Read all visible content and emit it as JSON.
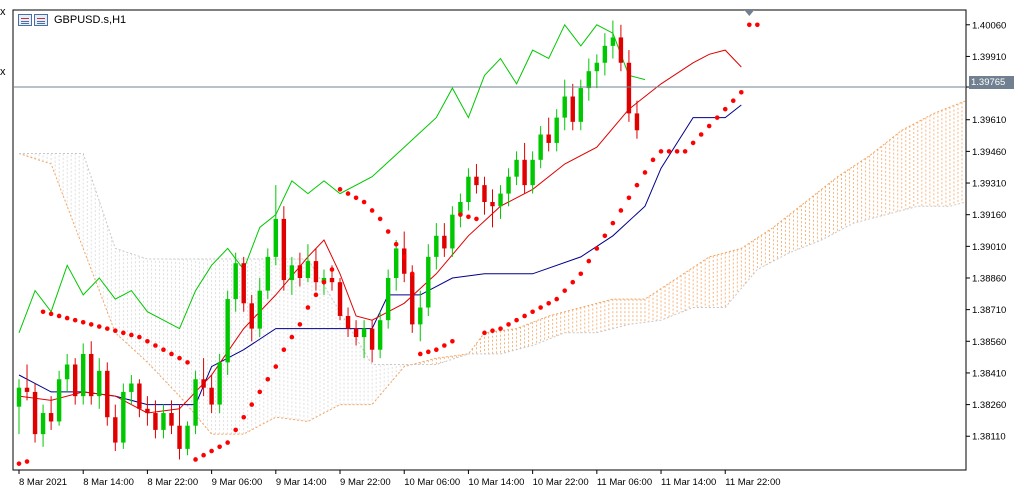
{
  "window": {
    "title": "GBPUSD.s,H1",
    "corner_marks": [
      "x",
      "x"
    ]
  },
  "colors": {
    "bull": "#00c800",
    "bear": "#e00000",
    "tenkan": "#e00000",
    "kijun": "#00008b",
    "chikou": "#00c800",
    "cloud_a": "#f4a460",
    "cloud_b": "#d8d8d8",
    "sar": "#ff0000",
    "price_line": "#708090"
  },
  "icons": [
    "chart-window-icon",
    "current-price-triangle-icon"
  ],
  "chart_data": {
    "type": "candlestick",
    "symbol": "GBPUSD.s",
    "timeframe": "H1",
    "indicators": [
      "Ichimoku Kinko Hyo",
      "Parabolic SAR"
    ],
    "y_range": [
      1.3795,
      1.4013
    ],
    "x_range": [
      0,
      118
    ],
    "y_ticks": [
      "1.40060",
      "1.39910",
      "1.39765",
      "1.39610",
      "1.39460",
      "1.39310",
      "1.39160",
      "1.39010",
      "1.38860",
      "1.38710",
      "1.38560",
      "1.38410",
      "1.38260",
      "1.38110"
    ],
    "x_ticks": [
      {
        "label": "8 Mar 2021",
        "bar": 0
      },
      {
        "label": "8 Mar 14:00",
        "bar": 8
      },
      {
        "label": "8 Mar 22:00",
        "bar": 16
      },
      {
        "label": "9 Mar 06:00",
        "bar": 24
      },
      {
        "label": "9 Mar 14:00",
        "bar": 32
      },
      {
        "label": "9 Mar 22:00",
        "bar": 40
      },
      {
        "label": "10 Mar 06:00",
        "bar": 48
      },
      {
        "label": "10 Mar 14:00",
        "bar": 56
      },
      {
        "label": "10 Mar 22:00",
        "bar": 64
      },
      {
        "label": "11 Mar 06:00",
        "bar": 72
      },
      {
        "label": "11 Mar 14:00",
        "bar": 80
      },
      {
        "label": "11 Mar 22:00",
        "bar": 88
      }
    ],
    "current_price": 1.39765,
    "current_price_label": "1.39765",
    "candles": [
      [
        1.3825,
        1.3838,
        1.3812,
        1.3834
      ],
      [
        1.3834,
        1.3845,
        1.3828,
        1.3832
      ],
      [
        1.3832,
        1.3836,
        1.3808,
        1.3812
      ],
      [
        1.3812,
        1.3826,
        1.3806,
        1.3822
      ],
      [
        1.3822,
        1.383,
        1.3814,
        1.3818
      ],
      [
        1.3818,
        1.3842,
        1.3816,
        1.3838
      ],
      [
        1.3838,
        1.385,
        1.3832,
        1.3845
      ],
      [
        1.3845,
        1.3848,
        1.3826,
        1.383
      ],
      [
        1.383,
        1.3855,
        1.3826,
        1.385
      ],
      [
        1.385,
        1.3856,
        1.3826,
        1.383
      ],
      [
        1.383,
        1.3848,
        1.3824,
        1.3842
      ],
      [
        1.3842,
        1.3846,
        1.3816,
        1.382
      ],
      [
        1.382,
        1.3826,
        1.3804,
        1.3808
      ],
      [
        1.3808,
        1.3836,
        1.3805,
        1.3832
      ],
      [
        1.3832,
        1.384,
        1.3826,
        1.3836
      ],
      [
        1.3836,
        1.3838,
        1.382,
        1.3824
      ],
      [
        1.3824,
        1.383,
        1.3816,
        1.3822
      ],
      [
        1.3822,
        1.3828,
        1.381,
        1.3814
      ],
      [
        1.3814,
        1.3826,
        1.381,
        1.3822
      ],
      [
        1.3822,
        1.3828,
        1.3812,
        1.3816
      ],
      [
        1.3816,
        1.3826,
        1.38,
        1.3805
      ],
      [
        1.3805,
        1.3818,
        1.3802,
        1.3816
      ],
      [
        1.3816,
        1.3842,
        1.3812,
        1.3838
      ],
      [
        1.3838,
        1.3848,
        1.383,
        1.3834
      ],
      [
        1.3834,
        1.384,
        1.3822,
        1.3826
      ],
      [
        1.3826,
        1.385,
        1.3822,
        1.3846
      ],
      [
        1.3846,
        1.388,
        1.384,
        1.3876
      ],
      [
        1.3876,
        1.3898,
        1.387,
        1.3893
      ],
      [
        1.3893,
        1.3896,
        1.387,
        1.3874
      ],
      [
        1.3874,
        1.3878,
        1.3856,
        1.3862
      ],
      [
        1.3862,
        1.3886,
        1.3858,
        1.388
      ],
      [
        1.388,
        1.39,
        1.3876,
        1.3896
      ],
      [
        1.3896,
        1.393,
        1.3892,
        1.3914
      ],
      [
        1.3914,
        1.392,
        1.388,
        1.3885
      ],
      [
        1.3885,
        1.3896,
        1.3878,
        1.3892
      ],
      [
        1.3892,
        1.3898,
        1.3882,
        1.3886
      ],
      [
        1.3886,
        1.3902,
        1.3884,
        1.3894
      ],
      [
        1.3894,
        1.39,
        1.388,
        1.3884
      ],
      [
        1.3884,
        1.389,
        1.3878,
        1.3886
      ],
      [
        1.3886,
        1.3892,
        1.388,
        1.3884
      ],
      [
        1.3884,
        1.3886,
        1.3866,
        1.3868
      ],
      [
        1.3868,
        1.3872,
        1.3858,
        1.3862
      ],
      [
        1.3862,
        1.3866,
        1.3854,
        1.3858
      ],
      [
        1.3858,
        1.3866,
        1.3848,
        1.3862
      ],
      [
        1.3862,
        1.3866,
        1.3846,
        1.3852
      ],
      [
        1.3852,
        1.387,
        1.3848,
        1.3866
      ],
      [
        1.3866,
        1.389,
        1.3862,
        1.3886
      ],
      [
        1.3886,
        1.3904,
        1.388,
        1.39
      ],
      [
        1.39,
        1.3908,
        1.3884,
        1.3888
      ],
      [
        1.3888,
        1.3892,
        1.386,
        1.3864
      ],
      [
        1.3864,
        1.388,
        1.3856,
        1.3872
      ],
      [
        1.3872,
        1.3902,
        1.3868,
        1.3896
      ],
      [
        1.3896,
        1.3912,
        1.389,
        1.3906
      ],
      [
        1.3906,
        1.3912,
        1.3896,
        1.39
      ],
      [
        1.39,
        1.392,
        1.3896,
        1.3916
      ],
      [
        1.3916,
        1.3926,
        1.391,
        1.3922
      ],
      [
        1.3922,
        1.3938,
        1.3918,
        1.3934
      ],
      [
        1.3934,
        1.394,
        1.3926,
        1.393
      ],
      [
        1.393,
        1.3934,
        1.3916,
        1.3922
      ],
      [
        1.3922,
        1.3928,
        1.391,
        1.392
      ],
      [
        1.392,
        1.393,
        1.3914,
        1.3926
      ],
      [
        1.3926,
        1.3938,
        1.392,
        1.3934
      ],
      [
        1.3934,
        1.3946,
        1.393,
        1.3942
      ],
      [
        1.3942,
        1.395,
        1.3926,
        1.393
      ],
      [
        1.393,
        1.3946,
        1.3926,
        1.3942
      ],
      [
        1.3942,
        1.3958,
        1.3938,
        1.3954
      ],
      [
        1.3954,
        1.3962,
        1.3946,
        1.395
      ],
      [
        1.395,
        1.3966,
        1.3946,
        1.3962
      ],
      [
        1.3962,
        1.398,
        1.3956,
        1.3972
      ],
      [
        1.3972,
        1.3978,
        1.3956,
        1.396
      ],
      [
        1.396,
        1.398,
        1.3956,
        1.3976
      ],
      [
        1.3976,
        1.399,
        1.397,
        1.3984
      ],
      [
        1.3984,
        1.3992,
        1.3976,
        1.3988
      ],
      [
        1.3988,
        1.4002,
        1.3982,
        1.3996
      ],
      [
        1.3996,
        1.4008,
        1.399,
        1.4
      ],
      [
        1.4,
        1.4006,
        1.3984,
        1.3988
      ],
      [
        1.3988,
        1.3994,
        1.396,
        1.3964
      ],
      [
        1.3964,
        1.397,
        1.3952,
        1.3956
      ]
    ],
    "candles_start_bar": 0,
    "tenkan": [
      [
        0,
        1.383
      ],
      [
        4,
        1.3828
      ],
      [
        8,
        1.3832
      ],
      [
        12,
        1.383
      ],
      [
        16,
        1.3822
      ],
      [
        20,
        1.3824
      ],
      [
        24,
        1.384
      ],
      [
        28,
        1.3862
      ],
      [
        32,
        1.3878
      ],
      [
        36,
        1.3896
      ],
      [
        38,
        1.3904
      ],
      [
        40,
        1.3888
      ],
      [
        42,
        1.3868
      ],
      [
        44,
        1.3866
      ],
      [
        48,
        1.3874
      ],
      [
        52,
        1.3888
      ],
      [
        56,
        1.3906
      ],
      [
        60,
        1.392
      ],
      [
        64,
        1.3928
      ],
      [
        68,
        1.394
      ],
      [
        72,
        1.3948
      ],
      [
        76,
        1.3966
      ],
      [
        80,
        1.3978
      ],
      [
        84,
        1.3988
      ],
      [
        86,
        1.3992
      ],
      [
        88,
        1.3994
      ],
      [
        90,
        1.3986
      ]
    ],
    "kijun": [
      [
        0,
        1.384
      ],
      [
        4,
        1.3832
      ],
      [
        8,
        1.3832
      ],
      [
        12,
        1.383
      ],
      [
        16,
        1.3826
      ],
      [
        22,
        1.3826
      ],
      [
        24,
        1.3844
      ],
      [
        28,
        1.3852
      ],
      [
        32,
        1.3862
      ],
      [
        40,
        1.3862
      ],
      [
        44,
        1.3862
      ],
      [
        46,
        1.3878
      ],
      [
        50,
        1.3878
      ],
      [
        54,
        1.3886
      ],
      [
        58,
        1.3888
      ],
      [
        64,
        1.3888
      ],
      [
        70,
        1.3896
      ],
      [
        74,
        1.3906
      ],
      [
        78,
        1.392
      ],
      [
        80,
        1.3938
      ],
      [
        82,
        1.395
      ],
      [
        84,
        1.3962
      ],
      [
        86,
        1.3962
      ],
      [
        88,
        1.3962
      ],
      [
        90,
        1.3968
      ]
    ],
    "chikou": [
      [
        0,
        1.386
      ],
      [
        2,
        1.388
      ],
      [
        4,
        1.387
      ],
      [
        6,
        1.3892
      ],
      [
        8,
        1.3878
      ],
      [
        10,
        1.3886
      ],
      [
        12,
        1.3876
      ],
      [
        14,
        1.388
      ],
      [
        16,
        1.387
      ],
      [
        18,
        1.3866
      ],
      [
        20,
        1.3862
      ],
      [
        22,
        1.388
      ],
      [
        24,
        1.3892
      ],
      [
        26,
        1.39
      ],
      [
        28,
        1.389
      ],
      [
        30,
        1.391
      ],
      [
        32,
        1.3916
      ],
      [
        34,
        1.3932
      ],
      [
        36,
        1.3926
      ],
      [
        38,
        1.3932
      ],
      [
        40,
        1.3926
      ],
      [
        44,
        1.3934
      ],
      [
        48,
        1.3948
      ],
      [
        52,
        1.3962
      ],
      [
        54,
        1.3976
      ],
      [
        56,
        1.3962
      ],
      [
        58,
        1.3982
      ],
      [
        60,
        1.399
      ],
      [
        62,
        1.3978
      ],
      [
        64,
        1.3994
      ],
      [
        66,
        1.399
      ],
      [
        68,
        1.4006
      ],
      [
        70,
        1.3996
      ],
      [
        72,
        1.4006
      ],
      [
        74,
        1.4002
      ],
      [
        76,
        1.3982
      ],
      [
        78,
        1.398
      ]
    ],
    "cloud_span_a": [
      [
        0,
        1.3945
      ],
      [
        4,
        1.394
      ],
      [
        8,
        1.39
      ],
      [
        12,
        1.386
      ],
      [
        16,
        1.3846
      ],
      [
        20,
        1.383
      ],
      [
        24,
        1.3812
      ],
      [
        28,
        1.3812
      ],
      [
        32,
        1.382
      ],
      [
        36,
        1.3818
      ],
      [
        40,
        1.3826
      ],
      [
        44,
        1.3826
      ],
      [
        48,
        1.3844
      ],
      [
        52,
        1.3848
      ],
      [
        56,
        1.385
      ],
      [
        58,
        1.386
      ],
      [
        62,
        1.3862
      ],
      [
        66,
        1.3868
      ],
      [
        70,
        1.3872
      ],
      [
        74,
        1.3876
      ],
      [
        78,
        1.3876
      ],
      [
        82,
        1.3886
      ],
      [
        86,
        1.3896
      ],
      [
        90,
        1.39
      ],
      [
        94,
        1.391
      ],
      [
        98,
        1.3922
      ],
      [
        102,
        1.3934
      ],
      [
        106,
        1.3944
      ],
      [
        110,
        1.3956
      ],
      [
        114,
        1.3964
      ],
      [
        118,
        1.397
      ]
    ],
    "cloud_span_b": [
      [
        0,
        1.3945
      ],
      [
        4,
        1.3945
      ],
      [
        8,
        1.3945
      ],
      [
        12,
        1.39
      ],
      [
        16,
        1.3895
      ],
      [
        20,
        1.3895
      ],
      [
        24,
        1.3895
      ],
      [
        28,
        1.3895
      ],
      [
        32,
        1.3895
      ],
      [
        36,
        1.3895
      ],
      [
        40,
        1.387
      ],
      [
        44,
        1.3845
      ],
      [
        48,
        1.3845
      ],
      [
        52,
        1.3845
      ],
      [
        56,
        1.385
      ],
      [
        60,
        1.385
      ],
      [
        64,
        1.3854
      ],
      [
        68,
        1.386
      ],
      [
        72,
        1.386
      ],
      [
        76,
        1.3864
      ],
      [
        80,
        1.3866
      ],
      [
        84,
        1.3872
      ],
      [
        88,
        1.3872
      ],
      [
        92,
        1.389
      ],
      [
        96,
        1.3898
      ],
      [
        100,
        1.3904
      ],
      [
        104,
        1.3912
      ],
      [
        108,
        1.3916
      ],
      [
        112,
        1.392
      ],
      [
        116,
        1.392
      ],
      [
        118,
        1.3922
      ]
    ],
    "sar": [
      [
        0,
        1.3798
      ],
      [
        1,
        1.3799
      ],
      [
        3,
        1.387
      ],
      [
        4,
        1.3869
      ],
      [
        5,
        1.3868
      ],
      [
        6,
        1.3867
      ],
      [
        7,
        1.3866
      ],
      [
        8,
        1.3865
      ],
      [
        9,
        1.3864
      ],
      [
        10,
        1.3863
      ],
      [
        11,
        1.3862
      ],
      [
        12,
        1.3861
      ],
      [
        13,
        1.386
      ],
      [
        14,
        1.3859
      ],
      [
        15,
        1.3858
      ],
      [
        16,
        1.3856
      ],
      [
        17,
        1.3854
      ],
      [
        18,
        1.3852
      ],
      [
        19,
        1.385
      ],
      [
        20,
        1.3848
      ],
      [
        21,
        1.3846
      ],
      [
        22,
        1.38
      ],
      [
        23,
        1.3802
      ],
      [
        24,
        1.3804
      ],
      [
        25,
        1.3806
      ],
      [
        26,
        1.3808
      ],
      [
        27,
        1.3814
      ],
      [
        28,
        1.382
      ],
      [
        29,
        1.3826
      ],
      [
        30,
        1.3832
      ],
      [
        31,
        1.3838
      ],
      [
        32,
        1.3844
      ],
      [
        33,
        1.3852
      ],
      [
        34,
        1.3858
      ],
      [
        35,
        1.3864
      ],
      [
        36,
        1.3872
      ],
      [
        37,
        1.3878
      ],
      [
        38,
        1.3884
      ],
      [
        39,
        1.389
      ],
      [
        40,
        1.3928
      ],
      [
        41,
        1.3926
      ],
      [
        42,
        1.3924
      ],
      [
        43,
        1.3922
      ],
      [
        44,
        1.3918
      ],
      [
        45,
        1.3914
      ],
      [
        46,
        1.3908
      ],
      [
        47,
        1.3902
      ],
      [
        48,
        1.3896
      ],
      [
        49,
        1.3888
      ],
      [
        50,
        1.385
      ],
      [
        51,
        1.3851
      ],
      [
        52,
        1.3852
      ],
      [
        53,
        1.3854
      ],
      [
        54,
        1.3856
      ],
      [
        55,
        1.3916
      ],
      [
        56,
        1.3915
      ],
      [
        57,
        1.3914
      ],
      [
        58,
        1.386
      ],
      [
        59,
        1.3861
      ],
      [
        60,
        1.3862
      ],
      [
        61,
        1.3864
      ],
      [
        62,
        1.3866
      ],
      [
        63,
        1.3868
      ],
      [
        64,
        1.387
      ],
      [
        65,
        1.3872
      ],
      [
        66,
        1.3874
      ],
      [
        67,
        1.3876
      ],
      [
        68,
        1.388
      ],
      [
        69,
        1.3884
      ],
      [
        70,
        1.3888
      ],
      [
        71,
        1.3894
      ],
      [
        72,
        1.39
      ],
      [
        73,
        1.3906
      ],
      [
        74,
        1.3912
      ],
      [
        75,
        1.3918
      ],
      [
        76,
        1.3924
      ],
      [
        77,
        1.393
      ],
      [
        78,
        1.3936
      ],
      [
        79,
        1.3942
      ],
      [
        80,
        1.3946
      ],
      [
        81,
        1.3946
      ],
      [
        82,
        1.3946
      ],
      [
        83,
        1.3946
      ],
      [
        84,
        1.395
      ],
      [
        85,
        1.3954
      ],
      [
        86,
        1.3958
      ],
      [
        87,
        1.3962
      ],
      [
        88,
        1.3966
      ],
      [
        89,
        1.397
      ],
      [
        90,
        1.3974
      ],
      [
        91,
        1.4006
      ],
      [
        92,
        1.4006
      ]
    ]
  }
}
